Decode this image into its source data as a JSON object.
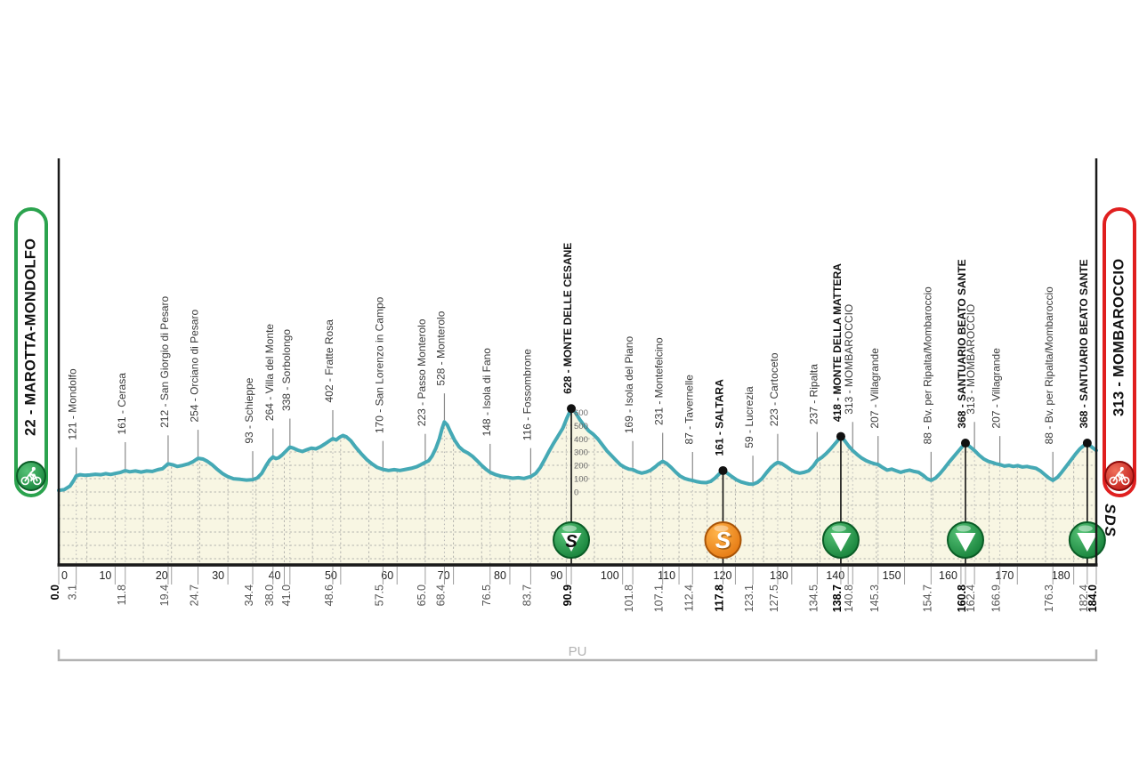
{
  "race": {
    "start_label": "22 - MAROTTA-MONDOLFO",
    "finish_label": "313 - MOMBAROCCIO",
    "province_label": "PU",
    "logo_text": "SDS"
  },
  "colors": {
    "profile_stroke": "#45a9b5",
    "profile_fill": "#f8f6e3",
    "start_accent": "#2ba34e",
    "finish_accent": "#e01f1f",
    "gpm_green": "#1f9247",
    "sprint_orange": "#f5871f",
    "grid_dot": "#9a9a9a",
    "leader_gray": "#8a8a8a",
    "axis_black": "#1a1a1a",
    "bracket_gray": "#b3b3b3"
  },
  "chart_data": {
    "type": "area",
    "x_unit": "km",
    "y_unit": "m",
    "total_km": 184.0,
    "x_major_ticks": [
      0,
      10,
      20,
      30,
      40,
      50,
      60,
      70,
      80,
      90,
      100,
      110,
      120,
      130,
      140,
      150,
      160,
      170,
      180
    ],
    "elevation_scale_labels": [
      0,
      100,
      200,
      300,
      400,
      500,
      600
    ],
    "elevation_scale_at_km": 90.9,
    "waypoints": [
      {
        "km": 3.1,
        "elev": 121,
        "label": "121 - Mondolfo",
        "bold": false,
        "marker": null
      },
      {
        "km": 11.8,
        "elev": 161,
        "label": "161 - Cerasa",
        "bold": false,
        "marker": null
      },
      {
        "km": 19.4,
        "elev": 212,
        "label": "212 - San Giorgio di Pesaro",
        "bold": false,
        "marker": null
      },
      {
        "km": 24.7,
        "elev": 254,
        "label": "254 - Orciano di Pesaro",
        "bold": false,
        "marker": null
      },
      {
        "km": 34.4,
        "elev": 93,
        "label": "93 - Schieppe",
        "bold": false,
        "marker": null
      },
      {
        "km": 38.0,
        "elev": 264,
        "label": "264 - Villa del Monte",
        "bold": false,
        "marker": null
      },
      {
        "km": 41.0,
        "elev": 338,
        "label": "338 - Sorbolongo",
        "bold": false,
        "marker": null
      },
      {
        "km": 48.6,
        "elev": 402,
        "label": "402 - Fratte Rosa",
        "bold": false,
        "marker": null
      },
      {
        "km": 57.5,
        "elev": 170,
        "label": "170 - San Lorenzo in Campo",
        "bold": false,
        "marker": null
      },
      {
        "km": 65.0,
        "elev": 223,
        "label": "223 - Passo Monterolo",
        "bold": false,
        "marker": null
      },
      {
        "km": 68.4,
        "elev": 528,
        "label": "528 - Monterolo",
        "bold": false,
        "marker": null
      },
      {
        "km": 76.5,
        "elev": 148,
        "label": "148 - Isola di Fano",
        "bold": false,
        "marker": null
      },
      {
        "km": 83.7,
        "elev": 116,
        "label": "116 - Fossombrone",
        "bold": false,
        "marker": null
      },
      {
        "km": 90.9,
        "elev": 628,
        "label": "628 - MONTE DELLE CESANE",
        "bold": true,
        "marker": "gpm_sprint"
      },
      {
        "km": 101.8,
        "elev": 169,
        "label": "169 - Isola del Piano",
        "bold": false,
        "marker": null
      },
      {
        "km": 107.1,
        "elev": 231,
        "label": "231 - Montefelcino",
        "bold": false,
        "marker": null
      },
      {
        "km": 112.4,
        "elev": 87,
        "label": "87 - Tavernelle",
        "bold": false,
        "marker": null
      },
      {
        "km": 117.8,
        "elev": 161,
        "label": "161 - SALTARA",
        "bold": true,
        "marker": "sprint"
      },
      {
        "km": 123.1,
        "elev": 59,
        "label": "59 - Lucrezia",
        "bold": false,
        "marker": null
      },
      {
        "km": 127.5,
        "elev": 223,
        "label": "223 - Cartoceto",
        "bold": false,
        "marker": null
      },
      {
        "km": 134.5,
        "elev": 237,
        "label": "237 - Ripalta",
        "bold": false,
        "marker": null
      },
      {
        "km": 138.7,
        "elev": 418,
        "label": "418 - MONTE DELLA MATTERA",
        "bold": true,
        "marker": "gpm"
      },
      {
        "km": 140.8,
        "elev": 313,
        "label": "313 - MOMBAROCCIO",
        "bold": false,
        "marker": null
      },
      {
        "km": 145.3,
        "elev": 207,
        "label": "207 - Villagrande",
        "bold": false,
        "marker": null
      },
      {
        "km": 154.7,
        "elev": 88,
        "label": "88 - Bv. per Ripalta/Mombaroccio",
        "bold": false,
        "marker": null
      },
      {
        "km": 160.8,
        "elev": 368,
        "label": "368 - SANTUARIO BEATO SANTE",
        "bold": true,
        "marker": "gpm"
      },
      {
        "km": 162.4,
        "elev": 313,
        "label": "313 - MOMBAROCCIO",
        "bold": false,
        "marker": null
      },
      {
        "km": 166.9,
        "elev": 207,
        "label": "207 - Villagrande",
        "bold": false,
        "marker": null
      },
      {
        "km": 176.3,
        "elev": 88,
        "label": "88 - Bv. per Ripalta/Mombaroccio",
        "bold": false,
        "marker": null
      },
      {
        "km": 182.4,
        "elev": 368,
        "label": "368 - SANTUARIO BEATO SANTE",
        "bold": true,
        "marker": "gpm"
      }
    ],
    "km_marks": [
      {
        "km": 0.0,
        "text": "0.0",
        "bold": true
      },
      {
        "km": 3.1,
        "text": "3.1",
        "bold": false
      },
      {
        "km": 11.8,
        "text": "11.8",
        "bold": false
      },
      {
        "km": 19.4,
        "text": "19.4",
        "bold": false
      },
      {
        "km": 24.7,
        "text": "24.7",
        "bold": false
      },
      {
        "km": 34.4,
        "text": "34.4",
        "bold": false
      },
      {
        "km": 38.0,
        "text": "38.0",
        "bold": false
      },
      {
        "km": 41.0,
        "text": "41.0",
        "bold": false
      },
      {
        "km": 48.6,
        "text": "48.6",
        "bold": false
      },
      {
        "km": 57.5,
        "text": "57.5",
        "bold": false
      },
      {
        "km": 65.0,
        "text": "65.0",
        "bold": false
      },
      {
        "km": 68.4,
        "text": "68.4",
        "bold": false
      },
      {
        "km": 76.5,
        "text": "76.5",
        "bold": false
      },
      {
        "km": 83.7,
        "text": "83.7",
        "bold": false
      },
      {
        "km": 90.9,
        "text": "90.9",
        "bold": true
      },
      {
        "km": 101.8,
        "text": "101.8",
        "bold": false
      },
      {
        "km": 107.1,
        "text": "107.1",
        "bold": false
      },
      {
        "km": 112.4,
        "text": "112.4",
        "bold": false
      },
      {
        "km": 117.8,
        "text": "117.8",
        "bold": true
      },
      {
        "km": 123.1,
        "text": "123.1",
        "bold": false
      },
      {
        "km": 127.5,
        "text": "127.5",
        "bold": false
      },
      {
        "km": 134.5,
        "text": "134.5",
        "bold": false
      },
      {
        "km": 138.7,
        "text": "138.7",
        "bold": true
      },
      {
        "km": 140.8,
        "text": "140.8",
        "bold": false
      },
      {
        "km": 145.3,
        "text": "145.3",
        "bold": false
      },
      {
        "km": 154.7,
        "text": "154.7",
        "bold": false
      },
      {
        "km": 160.8,
        "text": "160.8",
        "bold": true
      },
      {
        "km": 162.4,
        "text": "162.4",
        "bold": false
      },
      {
        "km": 166.9,
        "text": "166.9",
        "bold": false
      },
      {
        "km": 176.3,
        "text": "176.3",
        "bold": false
      },
      {
        "km": 182.4,
        "text": "182.4",
        "bold": false
      },
      {
        "km": 184.0,
        "text": "184.0",
        "bold": true
      }
    ],
    "profile_points": [
      [
        0,
        12
      ],
      [
        1,
        18
      ],
      [
        2,
        45
      ],
      [
        2.7,
        90
      ],
      [
        3.1,
        121
      ],
      [
        3.8,
        130
      ],
      [
        4.6,
        126
      ],
      [
        5.5,
        128
      ],
      [
        6.5,
        133
      ],
      [
        7.5,
        130
      ],
      [
        8.3,
        138
      ],
      [
        9.2,
        132
      ],
      [
        10.3,
        142
      ],
      [
        11,
        148
      ],
      [
        11.8,
        161
      ],
      [
        12.6,
        152
      ],
      [
        13.6,
        158
      ],
      [
        14.6,
        150
      ],
      [
        15.6,
        158
      ],
      [
        16.6,
        155
      ],
      [
        17.6,
        168
      ],
      [
        18.4,
        175
      ],
      [
        19.4,
        212
      ],
      [
        20.2,
        205
      ],
      [
        21,
        192
      ],
      [
        22,
        200
      ],
      [
        23,
        212
      ],
      [
        23.8,
        228
      ],
      [
        24.7,
        254
      ],
      [
        25.6,
        248
      ],
      [
        26.4,
        230
      ],
      [
        27.2,
        205
      ],
      [
        28,
        175
      ],
      [
        29,
        140
      ],
      [
        30,
        115
      ],
      [
        31,
        100
      ],
      [
        32.2,
        95
      ],
      [
        33.3,
        90
      ],
      [
        34.4,
        93
      ],
      [
        35.2,
        105
      ],
      [
        36,
        140
      ],
      [
        36.8,
        200
      ],
      [
        37.4,
        240
      ],
      [
        38,
        264
      ],
      [
        38.5,
        252
      ],
      [
        39,
        258
      ],
      [
        39.6,
        278
      ],
      [
        40.3,
        308
      ],
      [
        41,
        338
      ],
      [
        41.6,
        330
      ],
      [
        42.4,
        315
      ],
      [
        43.2,
        305
      ],
      [
        44,
        318
      ],
      [
        44.8,
        330
      ],
      [
        45.6,
        325
      ],
      [
        46.4,
        340
      ],
      [
        47.2,
        362
      ],
      [
        48,
        385
      ],
      [
        48.6,
        402
      ],
      [
        49.2,
        392
      ],
      [
        49.8,
        412
      ],
      [
        50.4,
        425
      ],
      [
        51,
        415
      ],
      [
        51.8,
        385
      ],
      [
        52.6,
        340
      ],
      [
        53.6,
        290
      ],
      [
        54.6,
        245
      ],
      [
        55.6,
        210
      ],
      [
        56.5,
        185
      ],
      [
        57.5,
        170
      ],
      [
        58.5,
        162
      ],
      [
        59.5,
        168
      ],
      [
        60.5,
        162
      ],
      [
        61.5,
        170
      ],
      [
        62.5,
        178
      ],
      [
        63.5,
        190
      ],
      [
        64.2,
        205
      ],
      [
        65,
        223
      ],
      [
        65.6,
        235
      ],
      [
        66.2,
        270
      ],
      [
        66.9,
        330
      ],
      [
        67.5,
        400
      ],
      [
        68,
        480
      ],
      [
        68.4,
        528
      ],
      [
        68.9,
        505
      ],
      [
        69.5,
        450
      ],
      [
        70.2,
        390
      ],
      [
        71,
        340
      ],
      [
        71.8,
        310
      ],
      [
        72.6,
        292
      ],
      [
        73.4,
        268
      ],
      [
        74.2,
        235
      ],
      [
        75,
        200
      ],
      [
        75.8,
        170
      ],
      [
        76.5,
        148
      ],
      [
        77.5,
        130
      ],
      [
        78.5,
        118
      ],
      [
        79.5,
        112
      ],
      [
        80.5,
        104
      ],
      [
        81.5,
        108
      ],
      [
        82.5,
        102
      ],
      [
        83.7,
        116
      ],
      [
        84.6,
        140
      ],
      [
        85.4,
        185
      ],
      [
        86.2,
        245
      ],
      [
        87,
        310
      ],
      [
        87.8,
        370
      ],
      [
        88.6,
        425
      ],
      [
        89.4,
        480
      ],
      [
        90.1,
        555
      ],
      [
        90.9,
        628
      ],
      [
        91.6,
        600
      ],
      [
        92.4,
        545
      ],
      [
        93.2,
        500
      ],
      [
        94,
        460
      ],
      [
        94.8,
        435
      ],
      [
        95.6,
        400
      ],
      [
        96.4,
        355
      ],
      [
        97.2,
        310
      ],
      [
        98,
        275
      ],
      [
        98.8,
        240
      ],
      [
        99.6,
        205
      ],
      [
        100.4,
        185
      ],
      [
        101.1,
        172
      ],
      [
        101.8,
        169
      ],
      [
        102.6,
        152
      ],
      [
        103.4,
        142
      ],
      [
        104.2,
        150
      ],
      [
        105,
        165
      ],
      [
        105.8,
        190
      ],
      [
        106.4,
        212
      ],
      [
        107.1,
        231
      ],
      [
        107.8,
        215
      ],
      [
        108.6,
        185
      ],
      [
        109.4,
        150
      ],
      [
        110.2,
        120
      ],
      [
        111,
        102
      ],
      [
        111.8,
        92
      ],
      [
        112.4,
        87
      ],
      [
        113.2,
        78
      ],
      [
        114,
        72
      ],
      [
        114.8,
        70
      ],
      [
        115.6,
        80
      ],
      [
        116.4,
        105
      ],
      [
        117.1,
        135
      ],
      [
        117.8,
        161
      ],
      [
        118.6,
        140
      ],
      [
        119.4,
        115
      ],
      [
        120.2,
        92
      ],
      [
        121,
        76
      ],
      [
        121.8,
        66
      ],
      [
        122.4,
        60
      ],
      [
        123.1,
        59
      ],
      [
        123.9,
        72
      ],
      [
        124.7,
        100
      ],
      [
        125.5,
        145
      ],
      [
        126.3,
        185
      ],
      [
        127,
        210
      ],
      [
        127.5,
        223
      ],
      [
        128.2,
        215
      ],
      [
        129,
        192
      ],
      [
        129.8,
        168
      ],
      [
        130.6,
        150
      ],
      [
        131.4,
        142
      ],
      [
        132.2,
        148
      ],
      [
        133,
        160
      ],
      [
        133.8,
        195
      ],
      [
        134.5,
        237
      ],
      [
        135.3,
        260
      ],
      [
        136.1,
        290
      ],
      [
        136.9,
        325
      ],
      [
        137.7,
        365
      ],
      [
        138.3,
        395
      ],
      [
        138.7,
        418
      ],
      [
        139.4,
        385
      ],
      [
        140.1,
        345
      ],
      [
        140.8,
        313
      ],
      [
        141.6,
        282
      ],
      [
        142.4,
        255
      ],
      [
        143.2,
        235
      ],
      [
        144,
        222
      ],
      [
        144.7,
        212
      ],
      [
        145.3,
        207
      ],
      [
        146.1,
        185
      ],
      [
        146.9,
        165
      ],
      [
        147.7,
        172
      ],
      [
        148.5,
        160
      ],
      [
        149.3,
        148
      ],
      [
        150.1,
        158
      ],
      [
        150.9,
        165
      ],
      [
        151.7,
        155
      ],
      [
        152.5,
        148
      ],
      [
        153.3,
        125
      ],
      [
        154,
        100
      ],
      [
        154.7,
        88
      ],
      [
        155.5,
        105
      ],
      [
        156.3,
        140
      ],
      [
        157.1,
        180
      ],
      [
        157.9,
        225
      ],
      [
        158.7,
        265
      ],
      [
        159.5,
        305
      ],
      [
        160.2,
        340
      ],
      [
        160.8,
        368
      ],
      [
        161.6,
        340
      ],
      [
        162.4,
        313
      ],
      [
        163.2,
        278
      ],
      [
        164,
        250
      ],
      [
        164.8,
        232
      ],
      [
        165.6,
        222
      ],
      [
        166.2,
        212
      ],
      [
        166.9,
        207
      ],
      [
        167.7,
        195
      ],
      [
        168.5,
        200
      ],
      [
        169.3,
        192
      ],
      [
        170.1,
        198
      ],
      [
        170.9,
        188
      ],
      [
        171.7,
        192
      ],
      [
        172.5,
        185
      ],
      [
        173.3,
        178
      ],
      [
        174.1,
        158
      ],
      [
        174.9,
        130
      ],
      [
        175.6,
        105
      ],
      [
        176.3,
        88
      ],
      [
        177.1,
        110
      ],
      [
        177.9,
        150
      ],
      [
        178.7,
        195
      ],
      [
        179.5,
        240
      ],
      [
        180.3,
        285
      ],
      [
        181.1,
        325
      ],
      [
        181.8,
        350
      ],
      [
        182.4,
        368
      ],
      [
        183.2,
        338
      ],
      [
        184,
        313
      ]
    ]
  }
}
